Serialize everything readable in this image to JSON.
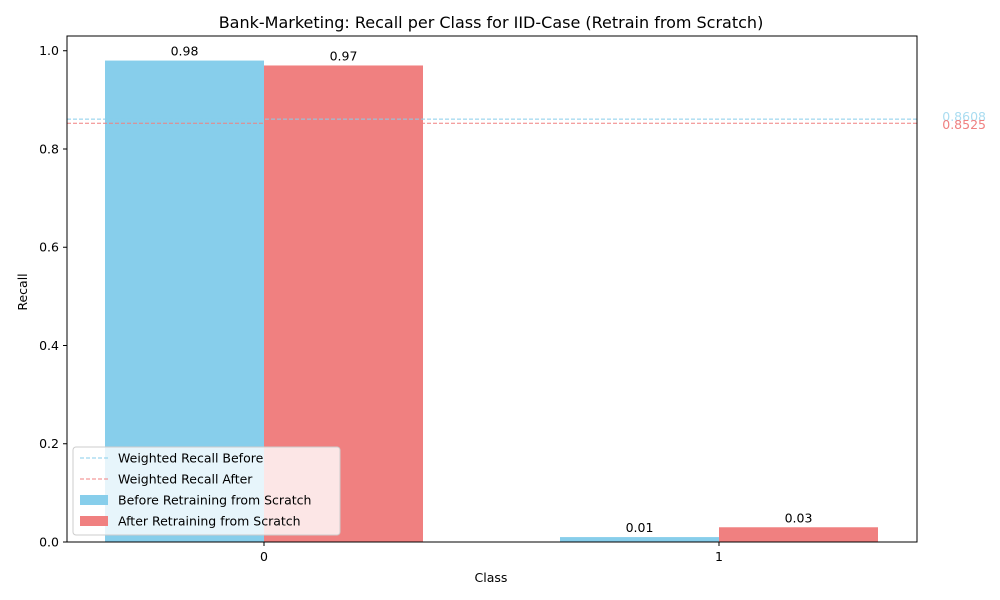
{
  "chart_data": {
    "type": "bar",
    "title": "Bank-Marketing: Recall per Class for IID-Case (Retrain from Scratch)",
    "xlabel": "Class",
    "ylabel": "Recall",
    "categories": [
      "0",
      "1"
    ],
    "ylim": [
      0,
      1.03
    ],
    "yticks": [
      "0.0",
      "0.2",
      "0.4",
      "0.6",
      "0.8",
      "1.0"
    ],
    "grid": false,
    "legend_position": "lower-left",
    "series": [
      {
        "name": "Before Retraining from Scratch",
        "values": [
          0.98,
          0.01
        ],
        "labels": [
          "0.98",
          "0.01"
        ],
        "color": "#87ceeb"
      },
      {
        "name": "After Retraining from Scratch",
        "values": [
          0.97,
          0.03
        ],
        "labels": [
          "0.97",
          "0.03"
        ],
        "color": "#f08080"
      }
    ],
    "reference_lines": [
      {
        "name": "Weighted Recall Before",
        "value": 0.8608,
        "label": "0.8608",
        "color": "#87ceeb",
        "style": "dashed"
      },
      {
        "name": "Weighted Recall After",
        "value": 0.8525,
        "label": "0.8525",
        "color": "#f08080",
        "style": "dashed"
      }
    ]
  }
}
